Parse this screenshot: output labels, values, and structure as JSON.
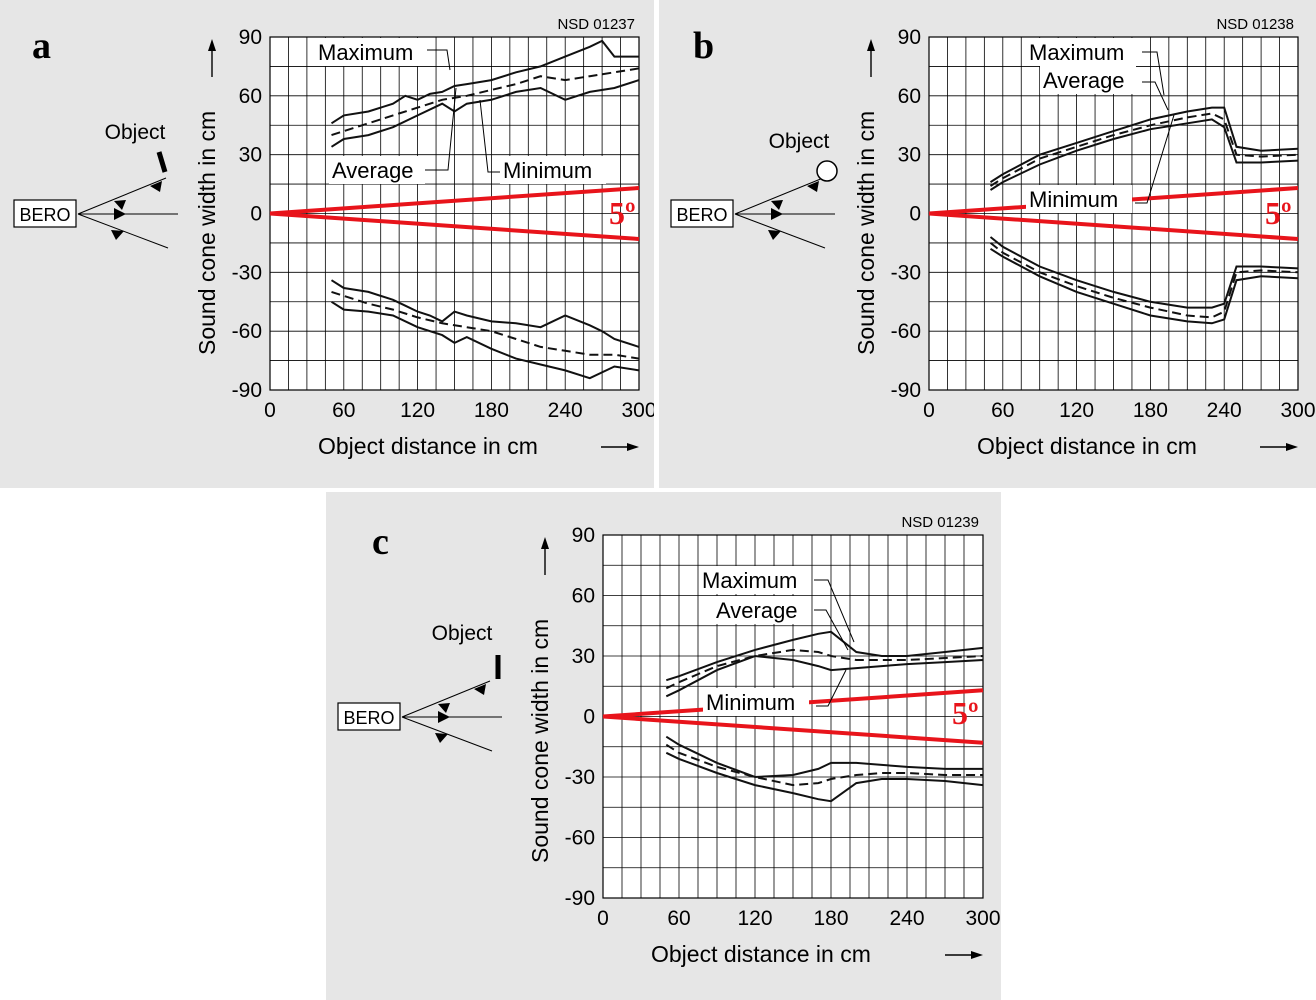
{
  "chart_data": [
    {
      "type": "line",
      "panel": "a",
      "figure_code": "NSD 01237",
      "xlabel": "Object distance in cm",
      "ylabel": "Sound cone width in cm",
      "xlim": [
        0,
        300
      ],
      "ylim": [
        -90,
        90
      ],
      "xticks": [
        0,
        60,
        120,
        180,
        240,
        300
      ],
      "yticks": [
        90,
        60,
        30,
        0,
        -30,
        -60,
        -90
      ],
      "grid": true,
      "object_label": "Object",
      "sensor_label": "BERO",
      "object_shape": "plate-tilted",
      "cone_angle_label": "5º",
      "cone_angle_deg": 5,
      "curve_labels": {
        "maximum": "Maximum",
        "average": "Average",
        "minimum": "Minimum"
      },
      "series": [
        {
          "name": "Maximum",
          "style": "solid",
          "x": [
            50,
            60,
            80,
            100,
            110,
            120,
            130,
            140,
            150,
            160,
            180,
            200,
            220,
            240,
            260,
            270,
            280,
            300
          ],
          "upper": [
            46,
            50,
            52,
            56,
            60,
            58,
            61,
            62,
            65,
            66,
            68,
            72,
            75,
            80,
            85,
            88,
            80,
            80
          ],
          "lower": [
            -34,
            -38,
            -40,
            -44,
            -47,
            -50,
            -52,
            -55,
            -50,
            -52,
            -55,
            -56,
            -58,
            -52,
            -57,
            -60,
            -64,
            -68
          ]
        },
        {
          "name": "Average",
          "style": "dashed",
          "x": [
            50,
            60,
            80,
            100,
            120,
            140,
            160,
            180,
            200,
            220,
            240,
            260,
            280,
            300
          ],
          "upper": [
            40,
            42,
            46,
            50,
            54,
            58,
            60,
            63,
            66,
            70,
            68,
            70,
            72,
            74
          ],
          "lower": [
            -40,
            -42,
            -46,
            -49,
            -53,
            -56,
            -58,
            -60,
            -64,
            -68,
            -70,
            -72,
            -72,
            -74
          ]
        },
        {
          "name": "Minimum",
          "style": "solid",
          "x": [
            50,
            60,
            80,
            100,
            120,
            140,
            150,
            160,
            180,
            200,
            220,
            240,
            260,
            280,
            300
          ],
          "upper": [
            34,
            38,
            40,
            44,
            50,
            56,
            52,
            56,
            58,
            62,
            64,
            58,
            62,
            64,
            68
          ],
          "lower": [
            -45,
            -49,
            -50,
            -52,
            -58,
            -62,
            -66,
            -63,
            -69,
            -74,
            -77,
            -80,
            -84,
            -78,
            -80
          ]
        }
      ],
      "cone": {
        "upper": [
          [
            0,
            0
          ],
          [
            300,
            13
          ]
        ],
        "lower": [
          [
            0,
            0
          ],
          [
            300,
            -13
          ]
        ]
      }
    },
    {
      "type": "line",
      "panel": "b",
      "figure_code": "NSD 01238",
      "xlabel": "Object distance in cm",
      "ylabel": "Sound cone width in cm",
      "xlim": [
        0,
        300
      ],
      "ylim": [
        -90,
        90
      ],
      "xticks": [
        0,
        60,
        120,
        180,
        240,
        300
      ],
      "yticks": [
        90,
        60,
        30,
        0,
        -30,
        -60,
        -90
      ],
      "grid": true,
      "object_label": "Object",
      "sensor_label": "BERO",
      "object_shape": "circle",
      "cone_angle_label": "5º",
      "cone_angle_deg": 5,
      "curve_labels": {
        "maximum": "Maximum",
        "average": "Average",
        "minimum": "Minimum"
      },
      "series": [
        {
          "name": "Maximum",
          "style": "solid",
          "x": [
            50,
            60,
            90,
            120,
            150,
            180,
            210,
            230,
            240,
            250,
            270,
            300
          ],
          "upper": [
            16,
            20,
            30,
            36,
            42,
            48,
            52,
            54,
            54,
            34,
            32,
            33
          ],
          "lower": [
            -18,
            -22,
            -32,
            -40,
            -46,
            -52,
            -55,
            -56,
            -54,
            -34,
            -32,
            -33
          ]
        },
        {
          "name": "Average",
          "style": "dashed",
          "x": [
            50,
            60,
            90,
            120,
            150,
            180,
            210,
            230,
            240,
            250,
            270,
            300
          ],
          "upper": [
            14,
            18,
            28,
            34,
            40,
            45,
            49,
            51,
            48,
            30,
            29,
            30
          ],
          "lower": [
            -15,
            -20,
            -30,
            -37,
            -43,
            -48,
            -52,
            -53,
            -50,
            -30,
            -29,
            -30
          ]
        },
        {
          "name": "Minimum",
          "style": "solid",
          "x": [
            50,
            60,
            90,
            120,
            150,
            180,
            210,
            230,
            240,
            250,
            270,
            300
          ],
          "upper": [
            12,
            16,
            25,
            32,
            38,
            43,
            46,
            48,
            44,
            26,
            26,
            27
          ],
          "lower": [
            -12,
            -17,
            -27,
            -34,
            -40,
            -45,
            -48,
            -48,
            -46,
            -27,
            -27,
            -28
          ]
        }
      ],
      "cone": {
        "upper": [
          [
            0,
            0
          ],
          [
            300,
            13
          ]
        ],
        "lower": [
          [
            0,
            0
          ],
          [
            300,
            -13
          ]
        ]
      }
    },
    {
      "type": "line",
      "panel": "c",
      "figure_code": "NSD 01239",
      "xlabel": "Object distance in cm",
      "ylabel": "Sound cone width in cm",
      "xlim": [
        0,
        300
      ],
      "ylim": [
        -90,
        90
      ],
      "xticks": [
        0,
        60,
        120,
        180,
        240,
        300
      ],
      "yticks": [
        90,
        60,
        30,
        0,
        -30,
        -60,
        -90
      ],
      "grid": true,
      "object_label": "Object",
      "sensor_label": "BERO",
      "object_shape": "plate-upright",
      "cone_angle_label": "5º",
      "cone_angle_deg": 5,
      "curve_labels": {
        "maximum": "Maximum",
        "average": "Average",
        "minimum": "Minimum"
      },
      "series": [
        {
          "name": "Maximum",
          "style": "solid",
          "x": [
            50,
            60,
            90,
            120,
            150,
            170,
            180,
            200,
            220,
            240,
            270,
            300
          ],
          "upper": [
            18,
            20,
            27,
            33,
            38,
            41,
            42,
            32,
            30,
            30,
            32,
            34
          ],
          "lower": [
            -18,
            -21,
            -28,
            -34,
            -38,
            -41,
            -42,
            -33,
            -31,
            -31,
            -32,
            -34
          ]
        },
        {
          "name": "Average",
          "style": "dashed",
          "x": [
            50,
            60,
            90,
            120,
            150,
            170,
            180,
            200,
            220,
            240,
            270,
            300
          ],
          "upper": [
            14,
            17,
            25,
            30,
            33,
            32,
            30,
            28,
            28,
            28,
            29,
            30
          ],
          "lower": [
            -14,
            -18,
            -25,
            -30,
            -34,
            -33,
            -31,
            -29,
            -28,
            -28,
            -29,
            -29
          ]
        },
        {
          "name": "Minimum",
          "style": "solid",
          "x": [
            50,
            60,
            90,
            120,
            150,
            170,
            180,
            200,
            220,
            240,
            270,
            300
          ],
          "upper": [
            10,
            13,
            23,
            30,
            28,
            25,
            23,
            24,
            25,
            26,
            27,
            28
          ],
          "lower": [
            -10,
            -14,
            -23,
            -30,
            -29,
            -26,
            -23,
            -23,
            -24,
            -25,
            -26,
            -26
          ]
        }
      ],
      "cone": {
        "upper": [
          [
            0,
            0
          ],
          [
            300,
            13
          ]
        ],
        "lower": [
          [
            0,
            0
          ],
          [
            300,
            -13
          ]
        ]
      }
    }
  ]
}
